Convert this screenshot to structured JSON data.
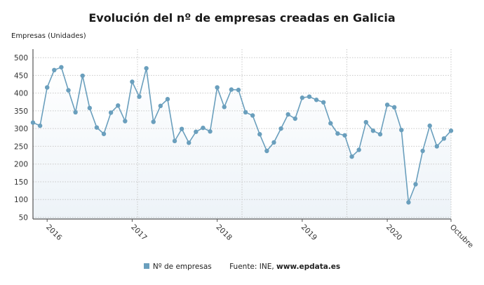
{
  "chart_data": {
    "type": "line",
    "title": "Evolución del nº de empresas creadas en Galicia",
    "ylabel": "Empresas (Unidades)",
    "xlabel": "",
    "ylim": [
      45,
      524
    ],
    "yticks": [
      50,
      100,
      150,
      200,
      250,
      300,
      350,
      400,
      450,
      500
    ],
    "x_tick_labels": [
      {
        "index": 2,
        "label": "2016"
      },
      {
        "index": 14,
        "label": "2017"
      },
      {
        "index": 26,
        "label": "2018"
      },
      {
        "index": 38,
        "label": "2019"
      },
      {
        "index": 50,
        "label": "2020"
      },
      {
        "index": 59,
        "label": "Octubre"
      }
    ],
    "x_range": "Nov 2015 – Oct 2020 (monthly)",
    "grid": true,
    "series": [
      {
        "name": "Nº de empresas",
        "color": "#6a9fbd",
        "values": [
          317,
          308,
          416,
          465,
          473,
          408,
          346,
          449,
          358,
          303,
          285,
          345,
          365,
          321,
          432,
          390,
          470,
          319,
          364,
          383,
          265,
          299,
          260,
          291,
          302,
          292,
          416,
          361,
          410,
          409,
          346,
          337,
          284,
          237,
          261,
          300,
          340,
          328,
          387,
          390,
          381,
          374,
          315,
          286,
          281,
          221,
          240,
          318,
          294,
          284,
          367,
          360,
          296,
          92,
          143,
          237,
          308,
          250,
          272,
          294
        ]
      }
    ],
    "legend_placement": "bottom",
    "source_prefix": "Fuente: INE, ",
    "source_site": "www.epdata.es"
  }
}
